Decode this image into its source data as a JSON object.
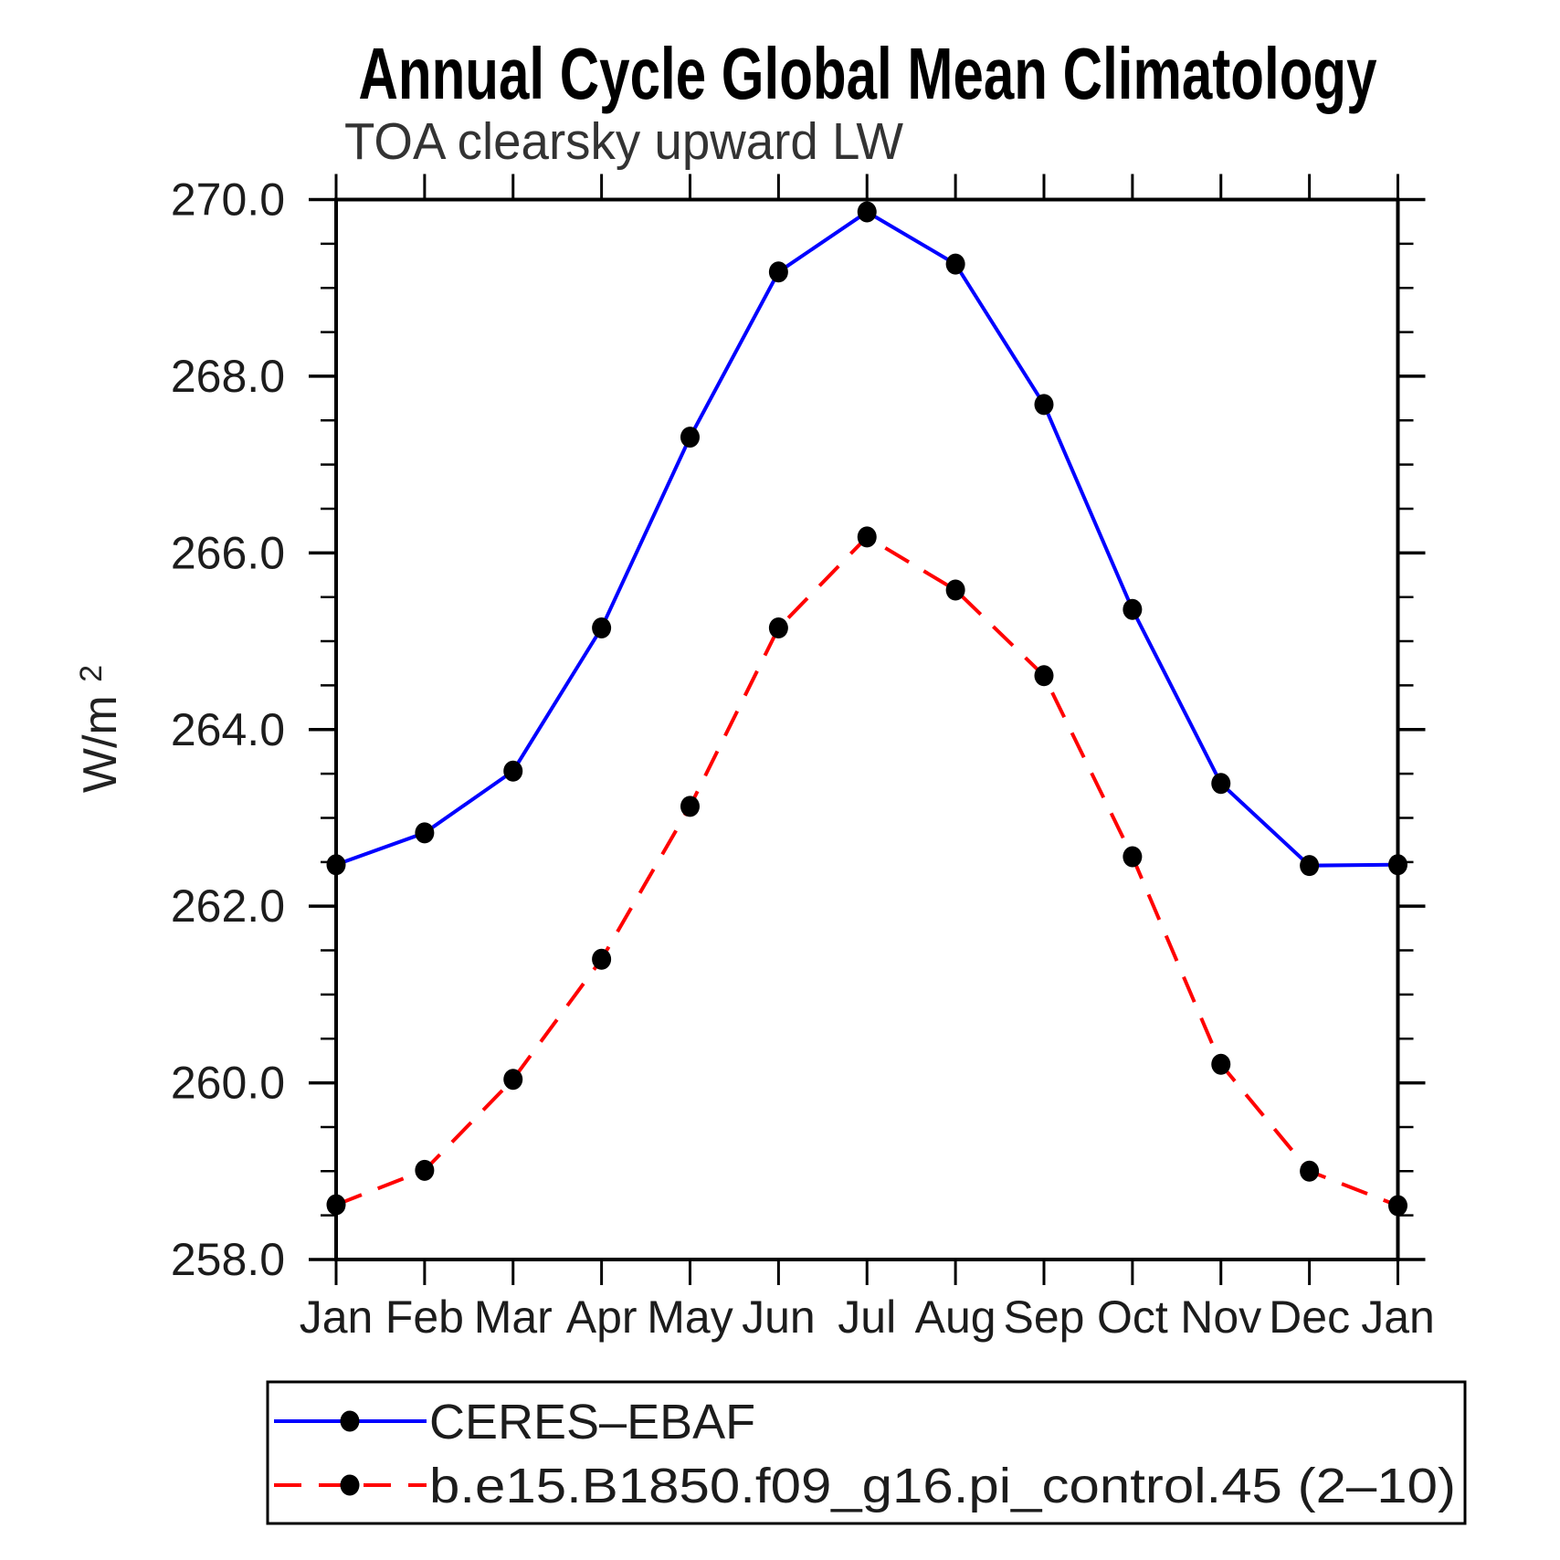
{
  "title": "Annual Cycle Global Mean Climatology",
  "subtitle": "TOA clearsky upward LW",
  "ylabel_base": "W/m",
  "ylabel_exp": "2",
  "colors": {
    "axis": "#000000",
    "marker": "#000000",
    "series1": "#0000ff",
    "series2": "#ff0000",
    "background": "#ffffff"
  },
  "chart_data": {
    "type": "line",
    "categories": [
      "Jan",
      "Feb",
      "Mar",
      "Apr",
      "May",
      "Jun",
      "Jul",
      "Aug",
      "Sep",
      "Oct",
      "Nov",
      "Dec",
      "Jan"
    ],
    "series": [
      {
        "name": "CERES-EBAF",
        "color": "#0000ff",
        "line_style": "solid",
        "marker": "filled-black-circle",
        "values": [
          262.47,
          262.83,
          263.53,
          265.15,
          267.31,
          269.18,
          269.86,
          269.27,
          267.68,
          265.36,
          263.39,
          262.46,
          262.47
        ]
      },
      {
        "name": "b.e15.B1850.f09_g16.pi_control.45 (2-10)",
        "color": "#ff0000",
        "line_style": "dashed",
        "marker": "filled-black-circle",
        "values": [
          258.62,
          259.01,
          260.04,
          261.4,
          263.13,
          265.15,
          266.18,
          265.58,
          264.61,
          262.56,
          260.21,
          259.0,
          258.61
        ]
      }
    ],
    "ylim": [
      258.0,
      270.0
    ],
    "ytick_major_step": 2.0,
    "ytick_minor_step": 0.5,
    "ytick_major_labels": [
      "258.0",
      "260.0",
      "262.0",
      "264.0",
      "266.0",
      "268.0",
      "270.0"
    ],
    "xlabel": "",
    "ylabel": "W/m2",
    "grid": false,
    "ticks": "outward-all-four-sides",
    "legend_position": "bottom-left-box"
  },
  "legend": {
    "entries": [
      {
        "label": "CERES–EBAF"
      },
      {
        "label": "b.e15.B1850.f09_g16.pi_control.45 (2–10)"
      }
    ]
  }
}
